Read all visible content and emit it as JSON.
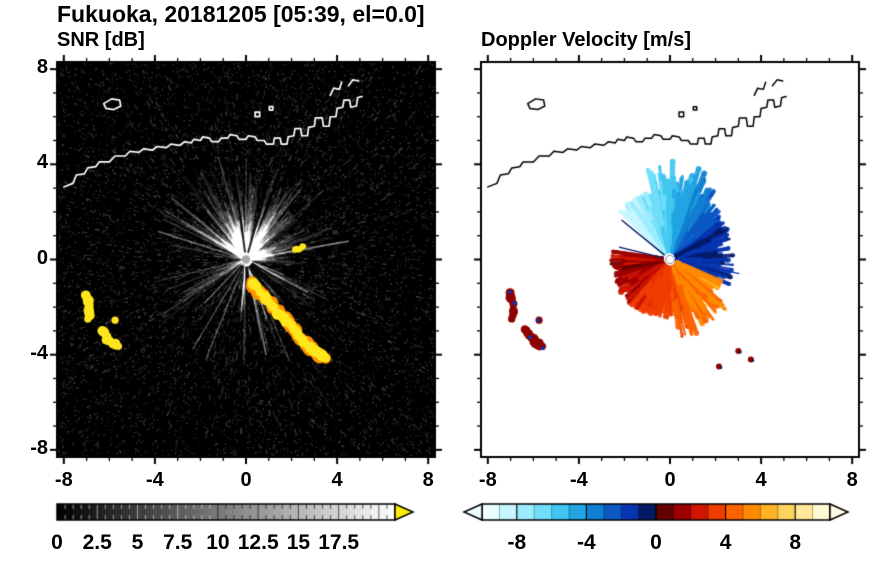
{
  "title": "Fukuoka, 20181205 [05:39, el=0.0]",
  "colors": {
    "frame": "#000000",
    "snr_background": "#000000",
    "velocity_background": "#ffffff",
    "coastline_on_snr": "#ffffff",
    "coastline_on_velocity": "#000000",
    "high_snr_color": "#ffe71c",
    "snr_overflow_arrow": "#ffee00",
    "velocity_underflow_arrow": "#eefcff",
    "velocity_overflow_arrow": "#fffbe4"
  },
  "coastline": {
    "main": [
      [
        -8,
        3.05
      ],
      [
        -7.6,
        3.2
      ],
      [
        -7.45,
        3.55
      ],
      [
        -7.1,
        3.6
      ],
      [
        -6.95,
        3.85
      ],
      [
        -6.6,
        3.9
      ],
      [
        -6.45,
        4.1
      ],
      [
        -6,
        4.1
      ],
      [
        -5.75,
        4.35
      ],
      [
        -5.3,
        4.35
      ],
      [
        -5.1,
        4.55
      ],
      [
        -4.7,
        4.5
      ],
      [
        -4.5,
        4.65
      ],
      [
        -4.1,
        4.6
      ],
      [
        -3.9,
        4.75
      ],
      [
        -3.5,
        4.7
      ],
      [
        -3.3,
        4.85
      ],
      [
        -2.9,
        4.8
      ],
      [
        -2.7,
        4.95
      ],
      [
        -2.4,
        4.9
      ],
      [
        -2.3,
        5.05
      ],
      [
        -2,
        5
      ],
      [
        -1.9,
        5.15
      ],
      [
        -1.6,
        5.1
      ],
      [
        -1.5,
        4.95
      ],
      [
        -1.2,
        4.95
      ],
      [
        -1.1,
        5.1
      ],
      [
        -0.8,
        5.1
      ],
      [
        -0.7,
        5.25
      ],
      [
        -0.4,
        5.2
      ],
      [
        -0.3,
        5.05
      ],
      [
        0,
        5.05
      ],
      [
        0.1,
        5.2
      ],
      [
        0.4,
        5.15
      ],
      [
        0.5,
        5
      ],
      [
        0.8,
        5
      ],
      [
        0.9,
        4.85
      ],
      [
        1.2,
        4.85
      ],
      [
        1.25,
        5.1
      ],
      [
        1.5,
        5.1
      ],
      [
        1.55,
        4.85
      ],
      [
        1.8,
        4.85
      ],
      [
        1.85,
        5.15
      ],
      [
        2.1,
        5.2
      ],
      [
        2.15,
        5.5
      ],
      [
        2.4,
        5.5
      ],
      [
        2.45,
        5.2
      ],
      [
        2.7,
        5.2
      ],
      [
        2.75,
        5.55
      ],
      [
        3,
        5.6
      ],
      [
        3.05,
        5.95
      ],
      [
        3.35,
        5.95
      ],
      [
        3.4,
        5.6
      ],
      [
        3.65,
        5.6
      ],
      [
        3.7,
        6
      ],
      [
        3.95,
        6
      ],
      [
        4,
        6.35
      ],
      [
        4.25,
        6.4
      ],
      [
        4.3,
        6.7
      ],
      [
        4.55,
        6.7
      ],
      [
        4.6,
        6.4
      ],
      [
        4.85,
        6.45
      ],
      [
        4.9,
        6.8
      ],
      [
        5.1,
        6.85
      ]
    ],
    "island": [
      [
        -6.25,
        6.55
      ],
      [
        -5.9,
        6.75
      ],
      [
        -5.55,
        6.7
      ],
      [
        -5.5,
        6.45
      ],
      [
        -5.8,
        6.3
      ],
      [
        -6.15,
        6.35
      ]
    ],
    "spits": [
      [
        [
          3.7,
          6.9
        ],
        [
          3.85,
          7.2
        ],
        [
          4.1,
          7.15
        ],
        [
          4.2,
          7.45
        ]
      ],
      [
        [
          4.5,
          7.3
        ],
        [
          4.7,
          7.55
        ],
        [
          4.95,
          7.5
        ]
      ]
    ],
    "marks": [
      [
        0.5,
        6.1,
        0.2
      ],
      [
        1.1,
        6.35,
        0.15
      ]
    ]
  },
  "chart_data": [
    {
      "type": "heatmap",
      "title": "SNR [dB]",
      "xlim": [
        -8.3,
        8.3
      ],
      "ylim": [
        -8.3,
        8.3
      ],
      "xtick_values": [
        -8,
        -4,
        0,
        4,
        8
      ],
      "xtick_labels": [
        "-8",
        "-4",
        "0",
        "4",
        "8"
      ],
      "ytick_values": [
        8,
        4,
        0,
        -4,
        -8
      ],
      "ytick_labels": [
        "8",
        "4",
        "0",
        "-4",
        "-8"
      ],
      "grid": false,
      "colorbar": {
        "orientation": "horizontal",
        "range": [
          0,
          21
        ],
        "tick_values": [
          0,
          2.5,
          5,
          7.5,
          10,
          12.5,
          15,
          17.5
        ],
        "tick_labels": [
          "0",
          "2.5",
          "5",
          "7.5",
          "10",
          "12.5",
          "15",
          "17.5"
        ],
        "palette": "grayscale-black-to-white",
        "overflow_color": "#ffee00"
      },
      "features": {
        "radar_center": [
          0,
          0
        ],
        "noise_floor_db": [
          0,
          3
        ],
        "echo_fan_azimuth_deg": [
          -65,
          95
        ],
        "echo_fan_max_radius_km": 4.6,
        "echo_fan_snr_db": [
          3,
          10
        ],
        "dark_spoke_azimuths_deg": [
          -8,
          17,
          120,
          133,
          147,
          171,
          179,
          206,
          216
        ],
        "high_snr_db": 17.5,
        "arc_chain": [
          [
            0.25,
            -0.95
          ],
          [
            0.6,
            -1.35
          ],
          [
            0.95,
            -1.75
          ],
          [
            1.3,
            -2.1
          ],
          [
            1.7,
            -2.5
          ],
          [
            2.1,
            -2.95
          ],
          [
            2.5,
            -3.4
          ],
          [
            2.85,
            -3.75
          ],
          [
            3.2,
            -4
          ],
          [
            3.5,
            -4.15
          ]
        ],
        "west_arcs": [
          [
            [
              -7.05,
              -1.45
            ],
            [
              -6.9,
              -1.8
            ],
            [
              -6.85,
              -2.15
            ],
            [
              -6.95,
              -2.5
            ]
          ],
          [
            [
              -6.35,
              -2.95
            ],
            [
              -6.15,
              -3.25
            ],
            [
              -5.9,
              -3.5
            ],
            [
              -5.6,
              -3.65
            ]
          ],
          [
            [
              -5.75,
              -2.55
            ]
          ]
        ],
        "spur": [
          [
            2.2,
            0.4
          ],
          [
            2.55,
            0.55
          ]
        ]
      }
    },
    {
      "type": "heatmap",
      "title": "Doppler Velocity [m/s]",
      "xlim": [
        -8.3,
        8.3
      ],
      "ylim": [
        -8.3,
        8.3
      ],
      "xtick_values": [
        -8,
        -4,
        0,
        4,
        8
      ],
      "xtick_labels": [
        "-8",
        "-4",
        "0",
        "4",
        "8"
      ],
      "ytick_values": [
        8,
        4,
        0,
        -4,
        -8
      ],
      "ytick_labels": [],
      "grid": false,
      "colorbar": {
        "orientation": "horizontal",
        "range": [
          -10,
          10
        ],
        "tick_values": [
          -8,
          -4,
          0,
          4,
          8
        ],
        "tick_labels": [
          "-8",
          "-4",
          "0",
          "4",
          "8"
        ],
        "palette": [
          "#eaffff",
          "#c6f6ff",
          "#9cecff",
          "#6fdefb",
          "#41c6f0",
          "#21a4e2",
          "#1280d2",
          "#0b58c4",
          "#0834b0",
          "#041a66",
          "#650000",
          "#9b0000",
          "#cf1500",
          "#f03d00",
          "#fb6400",
          "#ff8a00",
          "#ffb224",
          "#ffd35c",
          "#ffe996",
          "#fff8d0"
        ],
        "underflow_color": "#eefcff",
        "overflow_color": "#fffbe4"
      },
      "features": {
        "radar_center": [
          0,
          0
        ],
        "approaching_fan": {
          "azimuth_deg": [
            -48,
            64
          ],
          "velocity_ms": [
            -8.6,
            -1.2
          ],
          "max_radius_km": 3.9
        },
        "east_navy": {
          "azimuth_deg": [
            60,
            112
          ],
          "velocity_ms": [
            -2,
            -0.3
          ],
          "max_radius_km": 2.9
        },
        "receding_fan": {
          "azimuth_deg": [
            112,
            262
          ],
          "velocity_ms": [
            5.9,
            1.5
          ],
          "max_radius_km": 3.3
        },
        "west_streak": {
          "azimuth_deg": [
            258,
            278
          ],
          "velocity_ms": [
            0.8,
            2.4
          ],
          "max_radius_km": 2.6
        },
        "west_arcs_color": "#8f0000",
        "isolated_dots": [
          [
            3,
            -3.85
          ],
          [
            3.55,
            -4.2
          ],
          [
            2.15,
            -4.5
          ]
        ]
      }
    }
  ]
}
